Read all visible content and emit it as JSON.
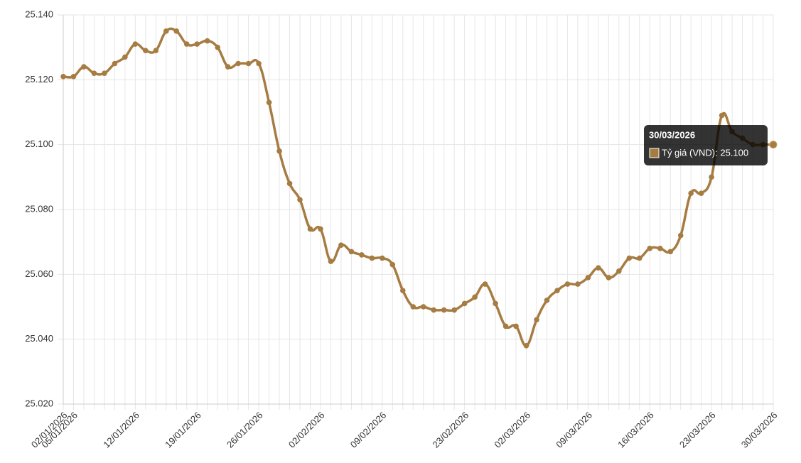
{
  "chart_data": {
    "type": "line",
    "categories": [
      "02/01/2026",
      "05/01/2026",
      null,
      null,
      null,
      null,
      null,
      "12/01/2026",
      null,
      null,
      null,
      null,
      null,
      "19/01/2026",
      null,
      null,
      null,
      null,
      null,
      "26/01/2026",
      null,
      null,
      null,
      null,
      null,
      "02/02/2026",
      null,
      null,
      null,
      null,
      null,
      "09/02/2026",
      null,
      null,
      null,
      null,
      null,
      null,
      null,
      "23/02/2026",
      null,
      null,
      null,
      null,
      null,
      "02/03/2026",
      null,
      null,
      null,
      null,
      null,
      "09/03/2026",
      null,
      null,
      null,
      null,
      null,
      "16/03/2026",
      null,
      null,
      null,
      null,
      null,
      "23/03/2026",
      null,
      null,
      null,
      null,
      null,
      "30/03/2026"
    ],
    "series": [
      {
        "name": "Tỷ giá (VND)",
        "color": "#a67c42",
        "values": [
          25121,
          25121,
          25124,
          25122,
          25122,
          25125,
          25127,
          25131,
          25129,
          25129,
          25135,
          25135,
          25131,
          25131,
          25132,
          25130,
          25124,
          25125,
          25125,
          25125,
          25113,
          25098,
          25088,
          25083,
          25074,
          25074,
          25064,
          25069,
          25067,
          25066,
          25065,
          25065,
          25063,
          25055,
          25050,
          25050,
          25049,
          25049,
          25049,
          25051,
          25053,
          25057,
          25051,
          25044,
          25044,
          25038,
          25046,
          25052,
          25055,
          25057,
          25057,
          25059,
          25062,
          25059,
          25061,
          25065,
          25065,
          25068,
          25068,
          25067,
          25072,
          25085,
          25085,
          25090,
          25109,
          25104,
          25102,
          25100,
          25100,
          25100
        ]
      }
    ],
    "ylim": [
      25020,
      25140
    ],
    "yticks": [
      {
        "value": 25020,
        "label": "25.020"
      },
      {
        "value": 25040,
        "label": "25.040"
      },
      {
        "value": 25060,
        "label": "25.060"
      },
      {
        "value": 25080,
        "label": "25.080"
      },
      {
        "value": 25100,
        "label": "25.100"
      },
      {
        "value": 25120,
        "label": "25.120"
      },
      {
        "value": 25140,
        "label": "25.140"
      }
    ],
    "grid": true,
    "tooltip": {
      "title": "30/03/2026",
      "text": "Tỷ giá (VND): 25.100"
    }
  }
}
